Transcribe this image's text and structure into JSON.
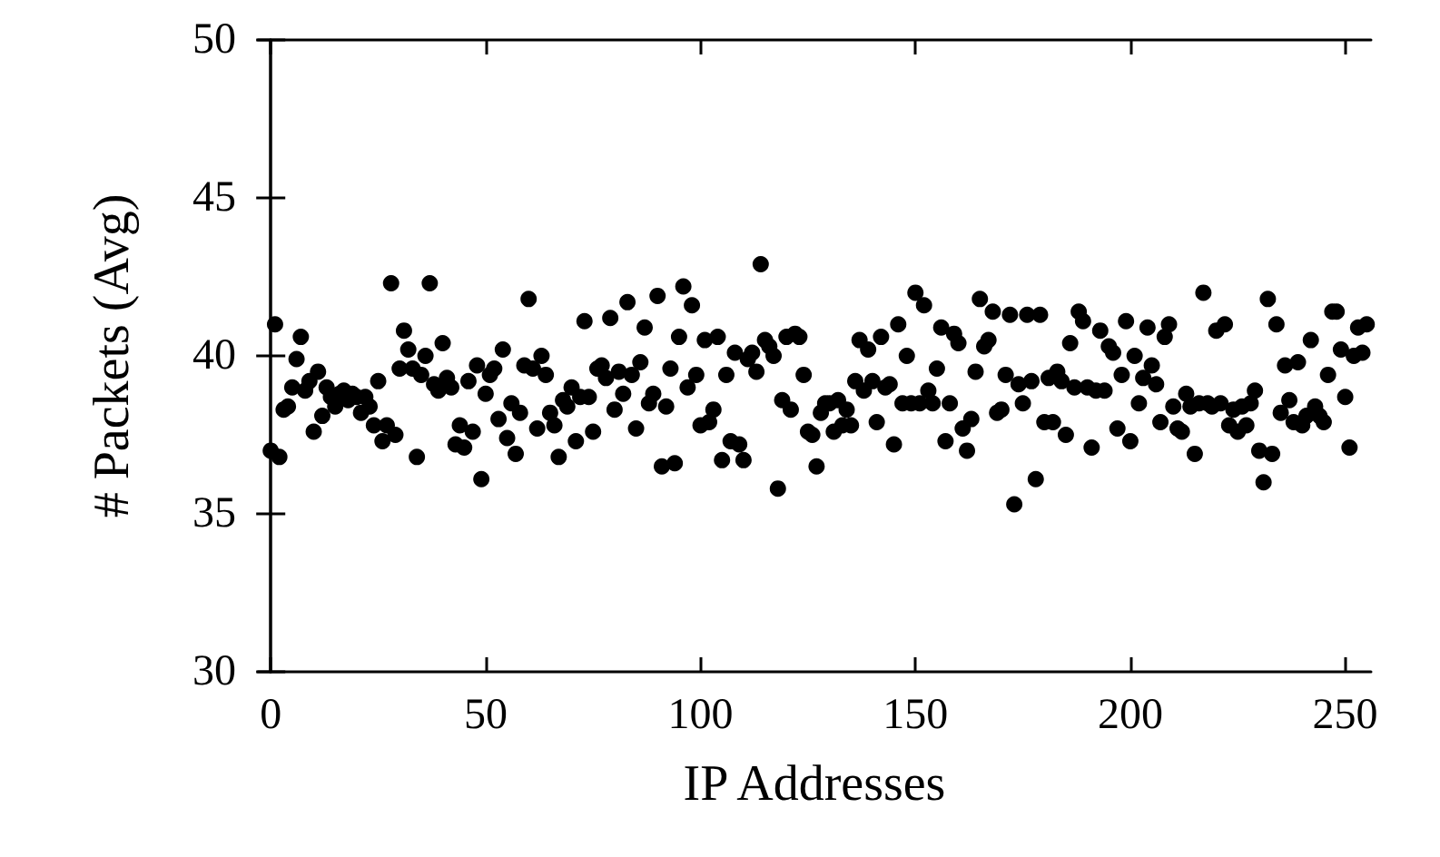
{
  "chart_data": {
    "type": "scatter",
    "xlabel": "IP Addresses",
    "ylabel": "# Packets (Avg)",
    "xlim": [
      -3,
      256
    ],
    "xticks": [
      0,
      50,
      100,
      150,
      200,
      250
    ],
    "ylim": [
      30,
      50
    ],
    "yticks": [
      30,
      35,
      40,
      45,
      50
    ],
    "grid": false,
    "marker": "circle",
    "x": [
      0,
      1,
      2,
      3,
      4,
      5,
      6,
      7,
      8,
      9,
      10,
      11,
      12,
      13,
      14,
      15,
      16,
      17,
      18,
      19,
      20,
      21,
      22,
      23,
      24,
      25,
      26,
      27,
      28,
      29,
      30,
      31,
      32,
      33,
      34,
      35,
      36,
      37,
      38,
      39,
      40,
      41,
      42,
      43,
      44,
      45,
      46,
      47,
      48,
      49,
      50,
      51,
      52,
      53,
      54,
      55,
      56,
      57,
      58,
      59,
      60,
      61,
      62,
      63,
      64,
      65,
      66,
      67,
      68,
      69,
      70,
      71,
      72,
      73,
      74,
      75,
      76,
      77,
      78,
      79,
      80,
      81,
      82,
      83,
      84,
      85,
      86,
      87,
      88,
      89,
      90,
      91,
      92,
      93,
      94,
      95,
      96,
      97,
      98,
      99,
      100,
      101,
      102,
      103,
      104,
      105,
      106,
      107,
      108,
      109,
      110,
      111,
      112,
      113,
      114,
      115,
      116,
      117,
      118,
      119,
      120,
      121,
      122,
      123,
      124,
      125,
      126,
      127,
      128,
      129,
      130,
      131,
      132,
      133,
      134,
      135,
      136,
      137,
      138,
      139,
      140,
      141,
      142,
      143,
      144,
      145,
      146,
      147,
      148,
      149,
      150,
      151,
      152,
      153,
      154,
      155,
      156,
      157,
      158,
      159,
      160,
      161,
      162,
      163,
      164,
      165,
      166,
      167,
      168,
      169,
      170,
      171,
      172,
      173,
      174,
      175,
      176,
      177,
      178,
      179,
      180,
      181,
      182,
      183,
      184,
      185,
      186,
      187,
      188,
      189,
      190,
      191,
      192,
      193,
      194,
      195,
      196,
      197,
      198,
      199,
      200,
      201,
      202,
      203,
      204,
      205,
      206,
      207,
      208,
      209,
      210,
      211,
      212,
      213,
      214,
      215,
      216,
      217,
      218,
      219,
      220,
      221,
      222,
      223,
      224,
      225,
      226,
      227,
      228,
      229,
      230,
      231,
      232,
      233,
      234,
      235,
      236,
      237,
      238,
      239,
      240,
      241,
      242,
      243,
      244,
      245,
      246,
      247,
      248,
      249,
      250,
      251,
      252,
      253,
      254,
      255
    ],
    "series": [
      {
        "color": "#000000",
        "values": [
          37.0,
          41.0,
          36.8,
          38.3,
          38.4,
          39.0,
          39.9,
          40.6,
          38.9,
          39.2,
          37.6,
          39.5,
          38.1,
          39.0,
          38.7,
          38.4,
          38.8,
          38.9,
          38.6,
          38.8,
          38.7,
          38.2,
          38.7,
          38.4,
          37.8,
          39.2,
          37.3,
          37.8,
          42.3,
          37.5,
          39.6,
          40.8,
          40.2,
          39.6,
          36.8,
          39.4,
          40.0,
          42.3,
          39.1,
          38.9,
          40.4,
          39.3,
          39.0,
          37.2,
          37.8,
          37.1,
          39.2,
          37.6,
          39.7,
          36.1,
          38.8,
          39.4,
          39.6,
          38.0,
          40.2,
          37.4,
          38.5,
          36.9,
          38.2,
          39.7,
          41.8,
          39.6,
          37.7,
          40.0,
          39.4,
          38.2,
          37.8,
          36.8,
          38.6,
          38.4,
          39.0,
          37.3,
          38.7,
          41.1,
          38.7,
          37.6,
          39.6,
          39.7,
          39.3,
          41.2,
          38.3,
          39.5,
          38.8,
          41.7,
          39.4,
          37.7,
          39.8,
          40.9,
          38.5,
          38.8,
          41.9,
          36.5,
          38.4,
          39.6,
          36.6,
          40.6,
          42.2,
          39.0,
          41.6,
          39.4,
          37.8,
          40.5,
          37.9,
          38.3,
          40.6,
          36.7,
          39.4,
          37.3,
          40.1,
          37.2,
          36.7,
          39.9,
          40.1,
          39.5,
          42.9,
          40.5,
          40.3,
          40.0,
          35.8,
          38.6,
          40.6,
          38.3,
          40.7,
          40.6,
          39.4,
          37.6,
          37.5,
          36.5,
          38.2,
          38.5,
          38.5,
          37.6,
          38.6,
          37.8,
          38.3,
          37.8,
          39.2,
          40.5,
          38.9,
          40.2,
          39.2,
          37.9,
          40.6,
          39.0,
          39.1,
          37.2,
          41.0,
          38.5,
          40.0,
          38.5,
          42.0,
          38.5,
          41.6,
          38.9,
          38.5,
          39.6,
          40.9,
          37.3,
          38.5,
          40.7,
          40.4,
          37.7,
          37.0,
          38.0,
          39.5,
          41.8,
          40.3,
          40.5,
          41.4,
          38.2,
          38.3,
          39.4,
          41.3,
          35.3,
          39.1,
          38.5,
          41.3,
          39.2,
          36.1,
          41.3,
          37.9,
          39.3,
          37.9,
          39.5,
          39.2,
          37.5,
          40.4,
          39.0,
          41.4,
          41.1,
          39.0,
          37.1,
          38.9,
          40.8,
          38.9,
          40.3,
          40.1,
          37.7,
          39.4,
          41.1,
          37.3,
          40.0,
          38.5,
          39.3,
          40.9,
          39.7,
          39.1,
          37.9,
          40.6,
          41.0,
          38.4,
          37.7,
          37.6,
          38.8,
          38.4,
          36.9,
          38.5,
          42.0,
          38.5,
          38.4,
          40.8,
          38.5,
          41.0,
          37.8,
          38.3,
          37.6,
          38.4,
          37.8,
          38.5,
          38.9,
          37.0,
          36.0,
          41.8,
          36.9,
          41.0,
          38.2,
          39.7,
          38.6,
          37.9,
          39.8,
          37.8,
          38.1,
          40.5,
          38.4,
          38.1,
          37.9,
          39.4,
          41.4,
          41.4,
          40.2,
          38.7,
          37.1,
          40.0,
          40.9,
          40.1,
          41.0
        ]
      }
    ]
  }
}
